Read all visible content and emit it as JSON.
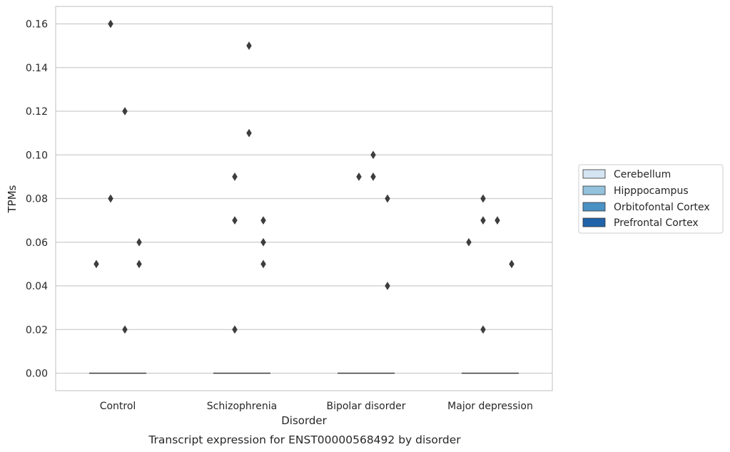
{
  "chart_data": {
    "type": "box",
    "caption": "Transcript expression for ENST00000568492 by disorder",
    "xlabel": "Disorder",
    "ylabel": "TPMs",
    "ylim": [
      -0.008,
      0.168
    ],
    "yticks": [
      0.0,
      0.02,
      0.04,
      0.06,
      0.08,
      0.1,
      0.12,
      0.14,
      0.16
    ],
    "ytick_labels": [
      "0.00",
      "0.02",
      "0.04",
      "0.06",
      "0.08",
      "0.10",
      "0.12",
      "0.14",
      "0.16"
    ],
    "grid": "horizontal",
    "legend_position": "right",
    "categories": [
      "Control",
      "Schizophrenia",
      "Bipolar disorder",
      "Major depression"
    ],
    "series": [
      {
        "name": "Cerebellum",
        "color": "#d4e4f2",
        "median": [
          0,
          0,
          0,
          0
        ],
        "outliers": [
          [
            0.05
          ],
          [],
          [],
          [
            0.06
          ]
        ]
      },
      {
        "name": "Hipppocampus",
        "color": "#94c2dc",
        "median": [
          0,
          0,
          0,
          0
        ],
        "outliers": [
          [
            0.16,
            0.08
          ],
          [
            0.09,
            0.07,
            0.02
          ],
          [
            0.09
          ],
          [
            0.08,
            0.07,
            0.02
          ]
        ]
      },
      {
        "name": "Orbitofontal Cortex",
        "color": "#4a91c4",
        "median": [
          0,
          0,
          0,
          0
        ],
        "outliers": [
          [
            0.12,
            0.02
          ],
          [
            0.15,
            0.11
          ],
          [
            0.1,
            0.09
          ],
          [
            0.07
          ]
        ]
      },
      {
        "name": "Prefrontal Cortex",
        "color": "#2063a8",
        "median": [
          0,
          0,
          0,
          0
        ],
        "outliers": [
          [
            0.06,
            0.05
          ],
          [
            0.07,
            0.06,
            0.05
          ],
          [
            0.08,
            0.04
          ],
          [
            0.05
          ]
        ]
      }
    ]
  }
}
